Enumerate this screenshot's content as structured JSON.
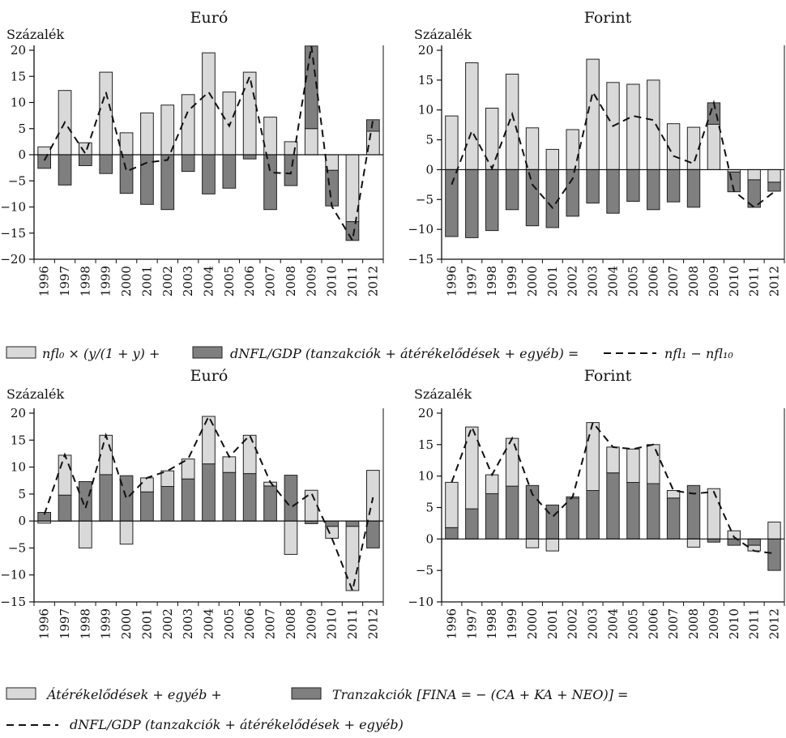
{
  "chart_data": [
    {
      "type": "bar",
      "title": "Euró",
      "ylabel": "Százalék",
      "ylim": [
        -20,
        20
      ],
      "yticks": [
        20,
        15,
        10,
        5,
        0,
        -5,
        -10,
        -15,
        -20
      ],
      "categories": [
        "1996",
        "1997",
        "1998",
        "1999",
        "2000",
        "2001",
        "2002",
        "2003",
        "2004",
        "2005",
        "2006",
        "2007",
        "2008",
        "2009",
        "2010",
        "2011",
        "2012"
      ],
      "stacked": true,
      "series": [
        {
          "name": "nfl₀ × (y/(1 + y) +",
          "kind": "bar",
          "color": "#d9d9d9",
          "values": [
            1.5,
            12.3,
            2.3,
            15.8,
            4.2,
            8.0,
            9.5,
            11.5,
            19.5,
            12.0,
            15.8,
            7.2,
            2.5,
            5.0,
            -3.0,
            -12.8,
            4.5
          ]
        },
        {
          "name": "dNFL/GDP (tanzakciók + átérékelődések + egyéb) =",
          "kind": "bar",
          "color": "#7f7f7f",
          "values": [
            -2.6,
            -5.8,
            -2.1,
            -3.6,
            -7.4,
            -9.5,
            -10.5,
            -3.2,
            -7.5,
            -6.4,
            -0.8,
            -10.5,
            -5.9,
            15.8,
            -6.8,
            -3.6,
            2.2
          ]
        },
        {
          "name": "nfl₁ − nfl₁₀",
          "kind": "line",
          "color": "#111111",
          "values": [
            -1.1,
            6.2,
            0.2,
            12.0,
            -3.2,
            -1.5,
            -1.0,
            8.4,
            12.0,
            5.5,
            15.0,
            -3.4,
            -3.6,
            20.8,
            -9.9,
            -16.4,
            6.7
          ]
        }
      ]
    },
    {
      "type": "bar",
      "title": "Forint",
      "ylabel": "Százalék",
      "ylim": [
        -15,
        20
      ],
      "yticks": [
        20,
        15,
        10,
        5,
        0,
        -5,
        -10,
        -15
      ],
      "categories": [
        "1996",
        "1997",
        "1998",
        "1999",
        "2000",
        "2001",
        "2002",
        "2003",
        "2004",
        "2005",
        "2006",
        "2007",
        "2008",
        "2009",
        "2010",
        "2011",
        "2012"
      ],
      "stacked": true,
      "series": [
        {
          "name": "nfl₀ × (y/(1 + y) +",
          "kind": "bar",
          "color": "#d9d9d9",
          "values": [
            9.0,
            17.9,
            10.3,
            16.0,
            7.0,
            3.4,
            6.7,
            18.5,
            14.6,
            14.3,
            15.0,
            7.7,
            7.1,
            7.6,
            -0.4,
            -1.7,
            -2.1
          ]
        },
        {
          "name": "dNFL/GDP (tanzakciók + átérékelődések + egyéb) =",
          "kind": "bar",
          "color": "#7f7f7f",
          "values": [
            -11.2,
            -11.4,
            -10.2,
            -6.7,
            -9.4,
            -9.7,
            -7.8,
            -5.6,
            -7.3,
            -5.3,
            -6.7,
            -5.4,
            -6.3,
            3.6,
            -3.3,
            -4.6,
            -1.5
          ]
        },
        {
          "name": "nfl₁ − nfl₁₀",
          "kind": "line",
          "color": "#111111",
          "values": [
            -2.5,
            6.5,
            0.2,
            9.3,
            -2.5,
            -6.4,
            -1.5,
            13.0,
            7.3,
            9.0,
            8.3,
            2.3,
            1.0,
            11.2,
            -3.6,
            -6.3,
            -3.7
          ]
        }
      ]
    },
    {
      "type": "bar",
      "title": "Euró",
      "ylabel": "Százalék",
      "ylim": [
        -15,
        20
      ],
      "yticks": [
        20,
        15,
        10,
        5,
        0,
        -5,
        -10,
        -15
      ],
      "categories": [
        "1996",
        "1997",
        "1998",
        "1999",
        "2000",
        "2001",
        "2002",
        "2003",
        "2004",
        "2005",
        "2006",
        "2007",
        "2008",
        "2009",
        "2010",
        "2011",
        "2012"
      ],
      "stacked": true,
      "series": [
        {
          "name": "Tranzakciók [FINA = − (CA + KA + NEO)] =",
          "kind": "bar",
          "color": "#7f7f7f",
          "values": [
            1.6,
            4.8,
            7.3,
            8.6,
            8.4,
            5.4,
            6.4,
            7.8,
            10.6,
            9.0,
            8.8,
            6.5,
            8.5,
            -0.5,
            -1.0,
            -1.0,
            -5.0
          ]
        },
        {
          "name": "Átérékelődések + egyéb +",
          "kind": "bar",
          "color": "#d9d9d9",
          "values": [
            -0.4,
            7.4,
            -5.0,
            7.3,
            -4.3,
            2.6,
            2.9,
            3.7,
            8.8,
            2.9,
            7.1,
            0.7,
            -6.2,
            5.7,
            -2.2,
            -11.9,
            9.4
          ]
        },
        {
          "name": "dNFL/GDP (tanzakciók + átérékelődések + egyéb)",
          "kind": "line",
          "color": "#111111",
          "values": [
            1.2,
            12.3,
            2.3,
            15.9,
            4.1,
            8.0,
            9.3,
            11.5,
            19.4,
            11.9,
            15.9,
            7.2,
            2.5,
            5.2,
            -3.2,
            -12.9,
            4.4
          ]
        }
      ]
    },
    {
      "type": "bar",
      "title": "Forint",
      "ylabel": "Százalék",
      "ylim": [
        -10,
        20
      ],
      "yticks": [
        20,
        15,
        10,
        5,
        0,
        -5,
        -10
      ],
      "categories": [
        "1996",
        "1997",
        "1998",
        "1999",
        "2000",
        "2001",
        "2002",
        "2003",
        "2004",
        "2005",
        "2006",
        "2007",
        "2008",
        "2009",
        "2010",
        "2011",
        "2012"
      ],
      "stacked": true,
      "series": [
        {
          "name": "Tranzakciók [FINA = − (CA + KA + NEO)] =",
          "kind": "bar",
          "color": "#7f7f7f",
          "values": [
            1.8,
            4.8,
            7.2,
            8.4,
            8.5,
            5.4,
            6.5,
            7.7,
            10.5,
            9.0,
            8.8,
            6.5,
            8.5,
            -0.5,
            -1.0,
            -1.0,
            -5.0
          ]
        },
        {
          "name": "Átérékelődések + egyéb +",
          "kind": "bar",
          "color": "#d9d9d9",
          "values": [
            7.2,
            13.0,
            3.0,
            7.6,
            -1.4,
            -1.9,
            0.2,
            10.8,
            4.1,
            5.3,
            6.2,
            1.2,
            -1.3,
            8.0,
            1.3,
            -0.9,
            2.7
          ]
        },
        {
          "name": "dNFL/GDP (tanzakciók + átérékelődések + egyéb)",
          "kind": "line",
          "color": "#111111",
          "values": [
            9.0,
            17.8,
            10.2,
            16.0,
            7.1,
            3.5,
            6.7,
            18.5,
            14.6,
            14.3,
            15.0,
            7.7,
            7.2,
            7.5,
            0.3,
            -1.9,
            -2.3
          ]
        }
      ]
    }
  ],
  "legend_top": {
    "item1": "nfl₀ × (y/(1 + y) +",
    "item2": "dNFL/GDP (tanzakciók + átérékelődések + egyéb) =",
    "item3": "nfl₁ − nfl₁₀"
  },
  "legend_bottom": {
    "item1": "Átérékelődések + egyéb +",
    "item2": "Tranzakciók [FINA = − (CA + KA + NEO)] =",
    "item3": "dNFL/GDP (tanzakciók + átérékelődések + egyéb)"
  }
}
